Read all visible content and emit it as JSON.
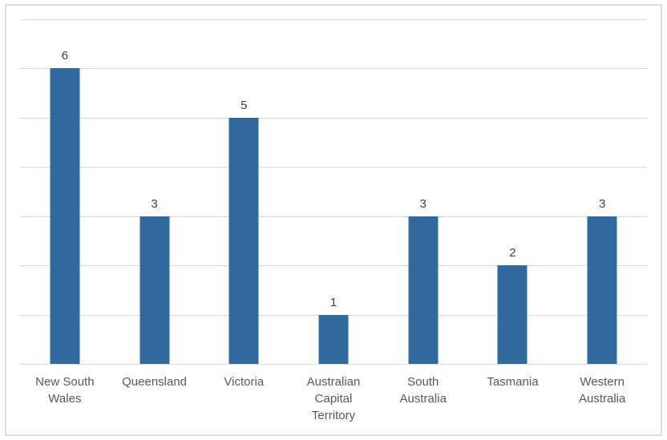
{
  "chart_data": {
    "type": "bar",
    "title": "",
    "xlabel": "",
    "ylabel": "",
    "categories": [
      "New South Wales",
      "Queensland",
      "Victoria",
      "Australian Capital Territory",
      "South Australia",
      "Tasmania",
      "Western Australia"
    ],
    "category_label_lines": [
      [
        "New South",
        "Wales"
      ],
      [
        "Queensland"
      ],
      [
        "Victoria"
      ],
      [
        "Australian",
        "Capital",
        "Territory"
      ],
      [
        "South",
        "Australia"
      ],
      [
        "Tasmania"
      ],
      [
        "Western",
        "Australia"
      ]
    ],
    "values": [
      6,
      3,
      5,
      1,
      3,
      2,
      3
    ],
    "ylim": [
      0,
      7
    ],
    "gridline_step": 1,
    "grid": true,
    "legend": "none",
    "y_axis_labels_visible": false,
    "data_labels_visible": true,
    "colors": {
      "bar": "#336A9D",
      "gridline": "#D9D9D9",
      "axis_line": "#D9D9D9",
      "data_label": "#404040",
      "category_label": "#595959",
      "frame_border": "#DCDCDC",
      "background": "#FFFFFF"
    }
  }
}
